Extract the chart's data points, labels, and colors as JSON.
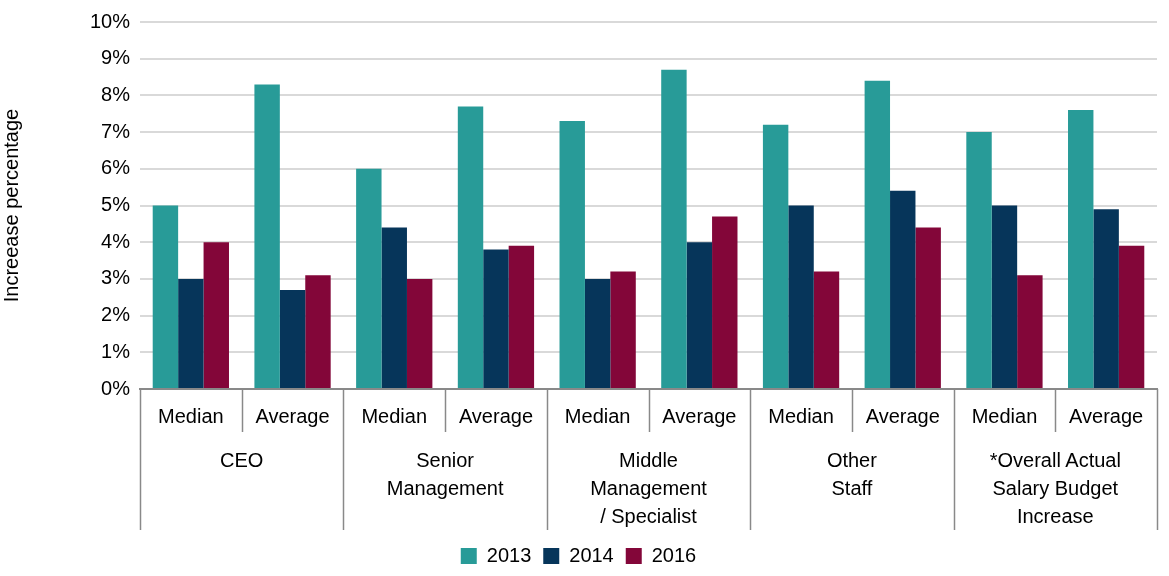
{
  "chart_data": {
    "type": "bar",
    "ylabel": "Increease percentage",
    "categories": [
      "Median",
      "Average",
      "Median",
      "Average",
      "Median",
      "Average",
      "Median",
      "Average",
      "Median",
      "Average"
    ],
    "annotations": [
      "CEO",
      "Senior\nManagement",
      "Middle\nManagement\n/ Specialist",
      "Other\nStaff",
      "*Overall Actual\nSalary Budget\nIncrease"
    ],
    "series": [
      {
        "name": "2013",
        "color": "#289b98",
        "values": [
          5.0,
          8.3,
          6.0,
          7.7,
          7.3,
          8.7,
          7.2,
          8.4,
          7.0,
          7.6
        ]
      },
      {
        "name": "2014",
        "color": "#06355a",
        "values": [
          3.0,
          2.7,
          4.4,
          3.8,
          3.0,
          4.0,
          5.0,
          5.4,
          5.0,
          4.9
        ]
      },
      {
        "name": "2016",
        "color": "#830639",
        "values": [
          4.0,
          3.1,
          3.0,
          3.9,
          3.2,
          4.7,
          3.2,
          4.4,
          3.1,
          3.9
        ]
      }
    ],
    "ylim": [
      0,
      10
    ],
    "yticks": [
      {
        "value": 0,
        "label": "0%"
      },
      {
        "value": 1,
        "label": "1%"
      },
      {
        "value": 2,
        "label": "2%"
      },
      {
        "value": 3,
        "label": "3%"
      },
      {
        "value": 4,
        "label": "4%"
      },
      {
        "value": 5,
        "label": "5%"
      },
      {
        "value": 6,
        "label": "6%"
      },
      {
        "value": 7,
        "label": "7%"
      },
      {
        "value": 8,
        "label": "8%"
      },
      {
        "value": 9,
        "label": "9%"
      },
      {
        "value": 10,
        "label": "10%"
      }
    ],
    "grid": "y",
    "legend": "bottom"
  }
}
